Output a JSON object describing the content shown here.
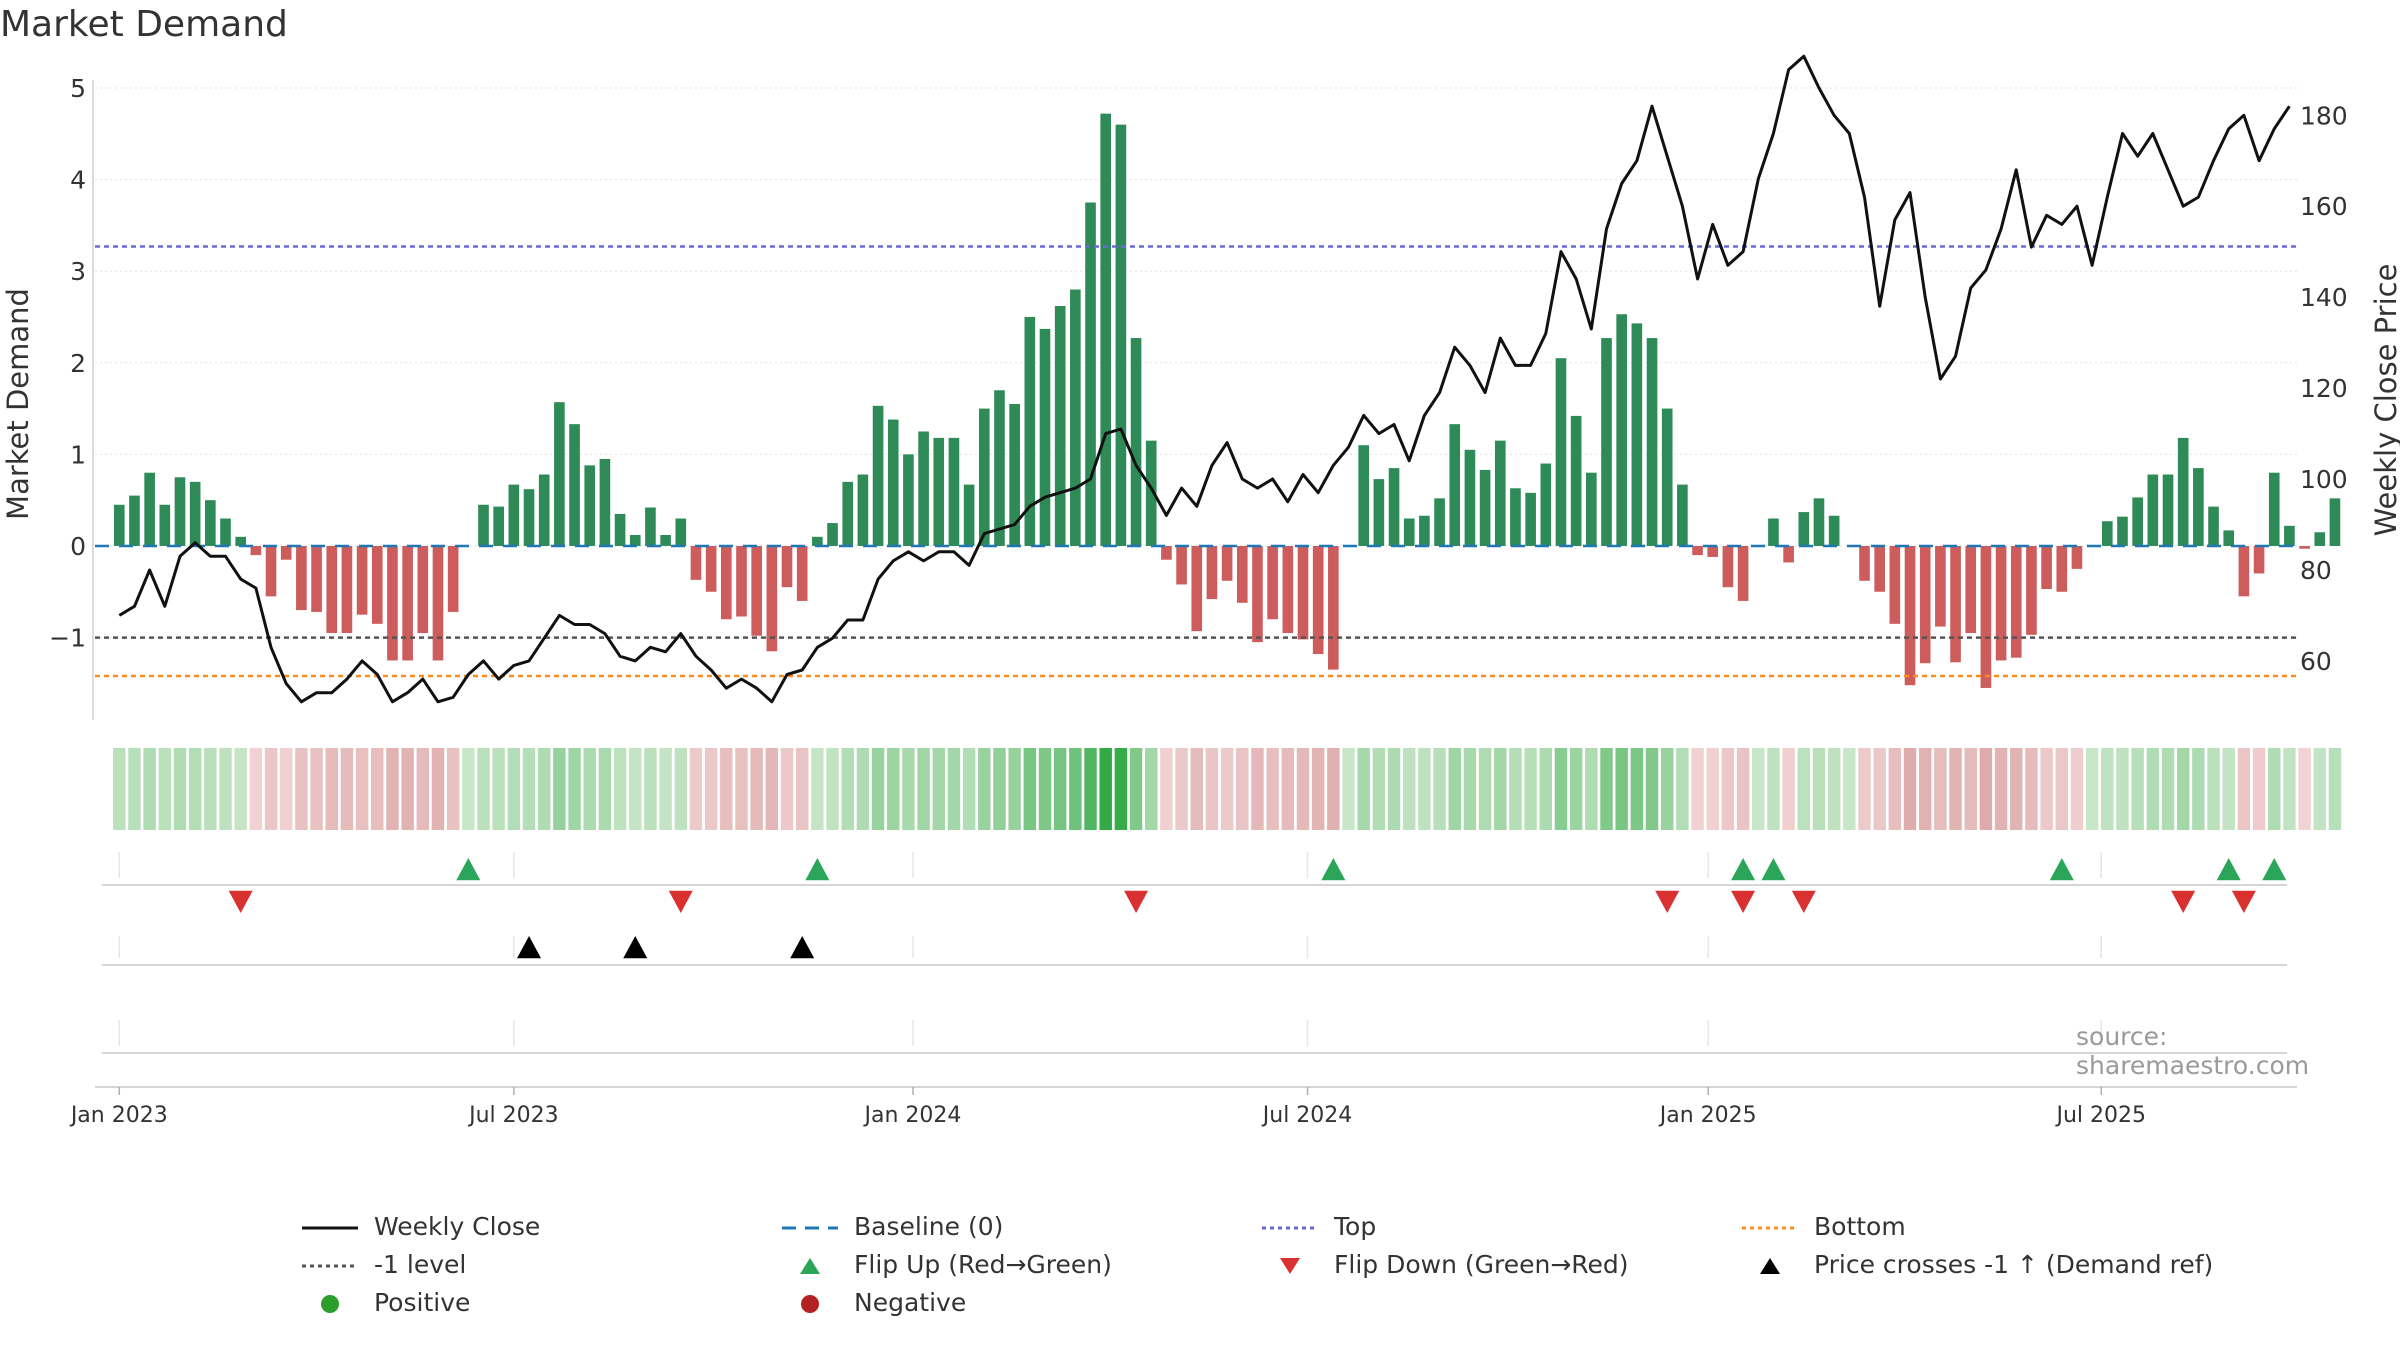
{
  "title": "Market Demand",
  "source": "source: sharemaestro.com",
  "colors": {
    "green": "#2e8b57",
    "red": "#cd5c5c",
    "black": "#111111",
    "baseline": "#1f77b4",
    "top": "#6a6ad8",
    "bottom": "#ff8c1a",
    "level": "#555555"
  },
  "legend": [
    {
      "id": "weekly",
      "label": "Weekly Close"
    },
    {
      "id": "baseline",
      "label": "Baseline (0)"
    },
    {
      "id": "top",
      "label": "Top"
    },
    {
      "id": "bottom",
      "label": "Bottom"
    },
    {
      "id": "level",
      "label": "-1 level"
    },
    {
      "id": "flipup",
      "label": "Flip Up (Red→Green)"
    },
    {
      "id": "flipdown",
      "label": "Flip Down (Green→Red)"
    },
    {
      "id": "cross",
      "label": "Price crosses -1 ↑ (Demand ref)"
    },
    {
      "id": "pos",
      "label": "Positive"
    },
    {
      "id": "neg",
      "label": "Negative"
    }
  ],
  "chart_data": {
    "type": "bar",
    "title": "Market Demand",
    "ylabel": "Market Demand",
    "y2label": "Weekly Close Price",
    "ylim": [
      -1.9,
      5.0
    ],
    "y2lim": [
      47,
      186
    ],
    "yticks": [
      5,
      4,
      3,
      2,
      1,
      0,
      -1
    ],
    "y2ticks": [
      180,
      160,
      140,
      120,
      100,
      80,
      60
    ],
    "week_range": [
      -1.6,
      143.5
    ],
    "xticks": [
      {
        "label": "Jan 2023",
        "week": 0
      },
      {
        "label": "Jul 2023",
        "week": 26
      },
      {
        "label": "Jan 2024",
        "week": 52.3
      },
      {
        "label": "Jul 2024",
        "week": 78.3
      },
      {
        "label": "Jan 2025",
        "week": 104.7
      },
      {
        "label": "Jul 2025",
        "week": 130.6
      }
    ],
    "reference_lines": {
      "baseline": 0,
      "top": 3.27,
      "bottom": -1.42,
      "level": -1
    },
    "demand": [
      0.45,
      0.55,
      0.8,
      0.45,
      0.75,
      0.7,
      0.5,
      0.3,
      0.1,
      -0.1,
      -0.55,
      -0.15,
      -0.7,
      -0.72,
      -0.95,
      -0.95,
      -0.75,
      -0.85,
      -1.25,
      -1.25,
      -0.95,
      -1.25,
      -0.72,
      0.0,
      0.45,
      0.43,
      0.67,
      0.62,
      0.78,
      1.57,
      1.33,
      0.88,
      0.95,
      0.35,
      0.12,
      0.42,
      0.12,
      0.3,
      -0.37,
      -0.5,
      -0.8,
      -0.77,
      -0.98,
      -1.15,
      -0.45,
      -0.6,
      0.1,
      0.25,
      0.7,
      0.78,
      1.53,
      1.38,
      1.0,
      1.25,
      1.18,
      1.18,
      0.67,
      1.5,
      1.7,
      1.55,
      2.5,
      2.37,
      2.62,
      2.8,
      3.75,
      4.72,
      4.6,
      2.27,
      1.15,
      -0.15,
      -0.42,
      -0.93,
      -0.58,
      -0.38,
      -0.62,
      -1.05,
      -0.8,
      -0.95,
      -1.02,
      -1.18,
      -1.35,
      0.0,
      1.1,
      0.73,
      0.85,
      0.3,
      0.33,
      0.52,
      1.33,
      1.05,
      0.83,
      1.15,
      0.63,
      0.58,
      0.9,
      2.05,
      1.42,
      0.8,
      2.27,
      2.53,
      2.43,
      2.27,
      1.5,
      0.67,
      -0.1,
      -0.12,
      -0.45,
      -0.6,
      0.0,
      0.3,
      -0.18,
      0.37,
      0.52,
      0.33,
      0.0,
      -0.38,
      -0.5,
      -0.85,
      -1.52,
      -1.28,
      -0.88,
      -1.27,
      -0.95,
      -1.55,
      -1.25,
      -1.22,
      -0.97,
      -0.47,
      -0.5,
      -0.25,
      0.0,
      0.27,
      0.32,
      0.53,
      0.78,
      0.78,
      1.18,
      0.85,
      0.43,
      0.17,
      -0.55,
      -0.3,
      0.8,
      0.22,
      -0.03,
      0.15,
      0.52
    ],
    "weekly_close": [
      70,
      72,
      80,
      72,
      83,
      86,
      83,
      83,
      78,
      76,
      63,
      55,
      51,
      53,
      53,
      56,
      60,
      57,
      51,
      53,
      56,
      51,
      52,
      57,
      60,
      56,
      59,
      60,
      65,
      70,
      68,
      68,
      66,
      61,
      60,
      63,
      62,
      66,
      61,
      58,
      54,
      56,
      54,
      51,
      57,
      58,
      63,
      65,
      69,
      69,
      78,
      82,
      84,
      82,
      84,
      84,
      81,
      88,
      89,
      90,
      94,
      96,
      97,
      98,
      100,
      110,
      111,
      103,
      98,
      92,
      98,
      94,
      103,
      108,
      100,
      98,
      100,
      95,
      101,
      97,
      103,
      107,
      114,
      110,
      112,
      104,
      114,
      119,
      129,
      125,
      119,
      131,
      125,
      125,
      132,
      150,
      144,
      133,
      155,
      165,
      170,
      182,
      171,
      160,
      144,
      156,
      147,
      150,
      166,
      176,
      190,
      193,
      186,
      180,
      176,
      162,
      138,
      157,
      163,
      140,
      122,
      127,
      142,
      146,
      155,
      168,
      151,
      158,
      156,
      160,
      147,
      162,
      176,
      171,
      176,
      168,
      160,
      162,
      170,
      177,
      180,
      170,
      177,
      182
    ],
    "flip_up_weeks": [
      23,
      46,
      80,
      107,
      109,
      128,
      139,
      142
    ],
    "flip_down_weeks": [
      8,
      37,
      67,
      102,
      107,
      111,
      136,
      140
    ],
    "price_cross_weeks": [
      27,
      34,
      45
    ]
  }
}
